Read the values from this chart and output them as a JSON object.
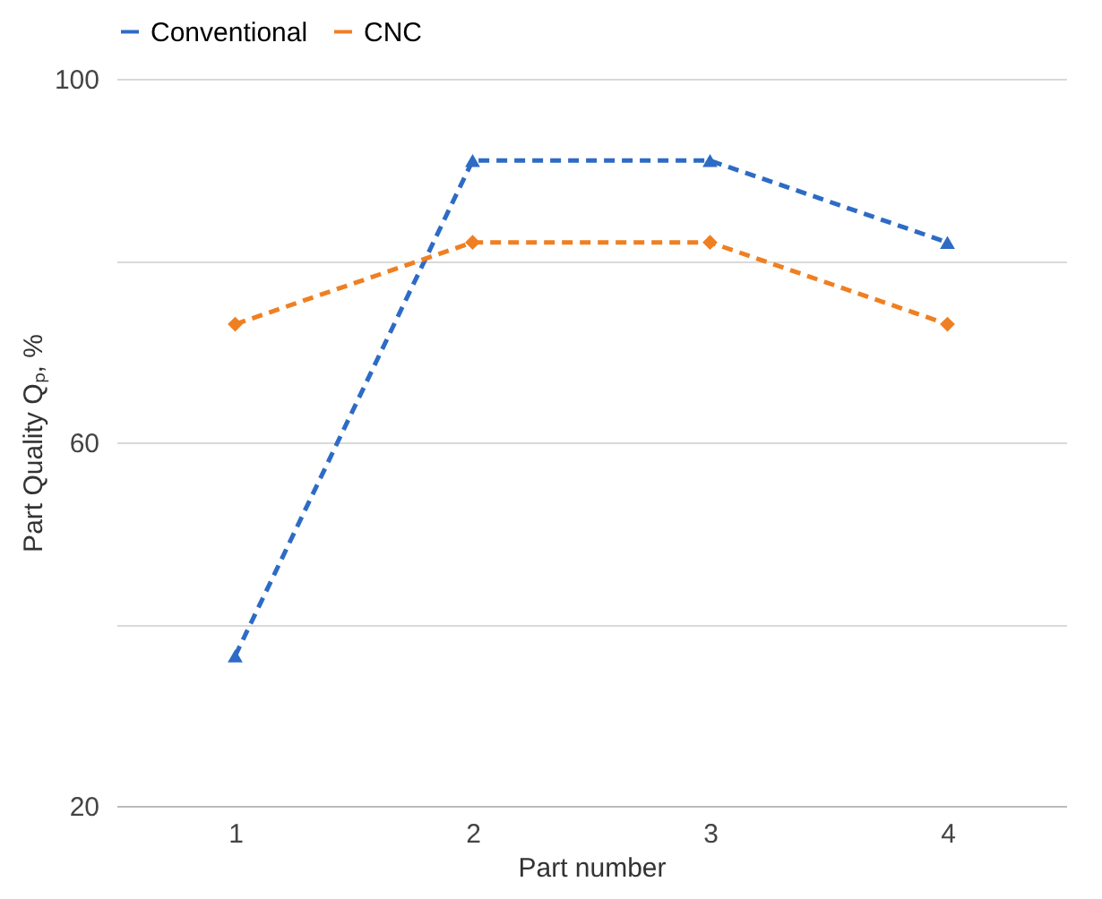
{
  "chart_data": {
    "type": "line",
    "xlabel": "Part number",
    "ylabel": "Part Quality Qₚ, %",
    "categories": [
      "1",
      "2",
      "3",
      "4"
    ],
    "series": [
      {
        "name": "Conventional",
        "color": "#2e6bc5",
        "marker": "triangle",
        "values": [
          36.5,
          91,
          91,
          82
        ]
      },
      {
        "name": "CNC",
        "color": "#f07f22",
        "marker": "diamond",
        "values": [
          73,
          82,
          82,
          73
        ]
      }
    ],
    "ylim": [
      20,
      100
    ],
    "yticks": [
      20,
      {
        "value": 40,
        "label": null
      },
      60,
      {
        "value": 80,
        "label": null
      },
      100
    ],
    "grid": "y",
    "legend": "top",
    "line_style": "dashed"
  }
}
